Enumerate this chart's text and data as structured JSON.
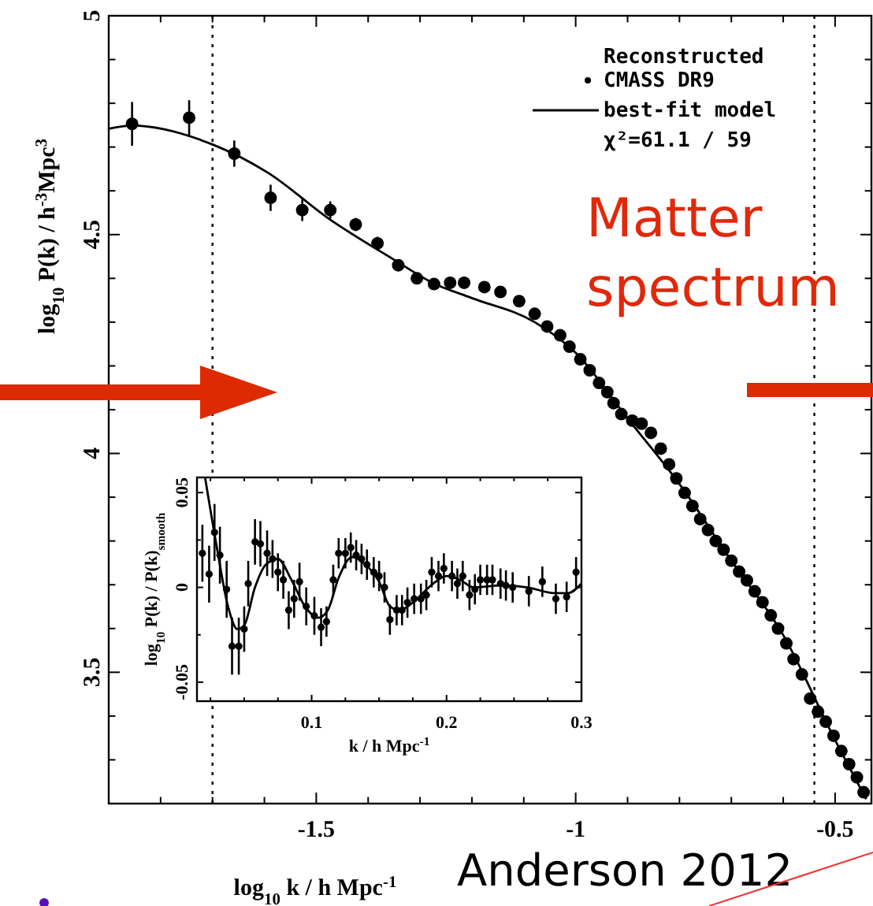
{
  "chart_data": [
    {
      "type": "scatter",
      "xlabel": "log$_{10}$ k / h Mpc$^{-1}$",
      "ylabel": "log$_{10}$ P(k) / h$^{-3}$Mpc$^{3}$",
      "legend_title": "Reconstructed",
      "legend": "top right",
      "xlim": [
        -1.9,
        -0.43
      ],
      "ylim": [
        3.2,
        5
      ],
      "xticks": [
        {
          "value": -1.8,
          "label": null
        },
        {
          "value": -1.7,
          "label": null
        },
        {
          "value": -1.6,
          "label": null
        },
        -1.5,
        {
          "value": -1.4,
          "label": null
        },
        {
          "value": -1.3,
          "label": null
        },
        {
          "value": -1.2,
          "label": null
        },
        {
          "value": -1.1,
          "label": null
        },
        -1,
        {
          "value": -0.9,
          "label": null
        },
        {
          "value": -0.8,
          "label": null
        },
        {
          "value": -0.7,
          "label": null
        },
        {
          "value": -0.6,
          "label": null
        },
        -0.5
      ],
      "yticks": [
        {
          "value": 3.3,
          "label": null
        },
        {
          "value": 3.4,
          "label": null
        },
        3.5,
        {
          "value": 3.6,
          "label": null
        },
        {
          "value": 3.7,
          "label": null
        },
        {
          "value": 3.8,
          "label": null
        },
        {
          "value": 3.9,
          "label": null
        },
        4,
        {
          "value": 4.1,
          "label": null
        },
        {
          "value": 4.2,
          "label": null
        },
        {
          "value": 4.3,
          "label": null
        },
        {
          "value": 4.4,
          "label": null
        },
        4.5,
        {
          "value": 4.6,
          "label": null
        },
        {
          "value": 4.7,
          "label": null
        },
        {
          "value": 4.8,
          "label": null
        },
        {
          "value": 4.9,
          "label": null
        },
        5
      ],
      "ref_lines": [
        {
          "axis": "x",
          "value": -1.7,
          "line_style": "dotted"
        },
        {
          "axis": "x",
          "value": -0.54,
          "line_style": "dotted"
        }
      ],
      "annotations": [
        "χ²=61.1 / 59",
        "Matter spectrum",
        "Anderson 2012"
      ],
      "series": [
        {
          "name": "CMASS DR9",
          "type": "scatter",
          "marker": "circle",
          "color": "#000000",
          "x": [
            -1.855,
            -1.745,
            -1.658,
            -1.588,
            -1.527,
            -1.473,
            -1.424,
            -1.382,
            -1.342,
            -1.306,
            -1.273,
            -1.242,
            -1.215,
            -1.176,
            -1.145,
            -1.109,
            -1.079,
            -1.055,
            -1.03,
            -1.012,
            -0.991,
            -0.973,
            -0.955,
            -0.939,
            -0.927,
            -0.912,
            -0.891,
            -0.873,
            -0.855,
            -0.836,
            -0.82,
            -0.806,
            -0.79,
            -0.775,
            -0.76,
            -0.745,
            -0.73,
            -0.715,
            -0.7,
            -0.685,
            -0.67,
            -0.655,
            -0.64,
            -0.624,
            -0.61,
            -0.594,
            -0.58,
            -0.564,
            -0.548,
            -0.533,
            -0.518,
            -0.503,
            -0.488,
            -0.473,
            -0.458,
            -0.445
          ],
          "values": [
            4.753,
            4.767,
            4.685,
            4.584,
            4.556,
            4.556,
            4.523,
            4.48,
            4.43,
            4.4,
            4.387,
            4.39,
            4.39,
            4.38,
            4.369,
            4.348,
            4.319,
            4.29,
            4.27,
            4.244,
            4.215,
            4.19,
            4.161,
            4.14,
            4.115,
            4.09,
            4.075,
            4.068,
            4.047,
            4.011,
            3.975,
            3.943,
            3.91,
            3.88,
            3.85,
            3.825,
            3.8,
            3.78,
            3.755,
            3.73,
            3.71,
            3.685,
            3.66,
            3.63,
            3.6,
            3.566,
            3.53,
            3.495,
            3.44,
            3.41,
            3.387,
            3.355,
            3.32,
            3.29,
            3.26,
            3.226
          ],
          "errors": [
            0.05,
            0.04,
            0.03,
            0.03,
            0.025,
            0.02,
            0.015,
            0.015,
            0.012,
            0.01,
            null,
            null,
            null,
            null,
            null,
            null,
            null,
            null,
            null,
            null,
            null,
            null,
            null,
            null,
            null,
            null,
            null,
            null,
            null,
            null,
            null,
            null,
            null,
            null,
            null,
            null,
            null,
            null,
            null,
            null,
            null,
            null,
            null,
            null,
            null,
            null,
            null,
            null,
            null,
            null,
            null,
            null,
            null,
            null,
            null,
            null
          ]
        },
        {
          "name": "best-fit model",
          "type": "line",
          "color": "#000000",
          "x": [
            -1.9,
            -1.855,
            -1.7,
            -1.594,
            -1.473,
            -1.352,
            -1.276,
            -1.2,
            -1.079,
            -1.0,
            -0.9,
            -0.8,
            -0.7,
            -0.6,
            -0.5,
            -0.44
          ],
          "values": [
            4.742,
            4.749,
            4.706,
            4.642,
            4.534,
            4.444,
            4.39,
            4.355,
            4.3,
            4.23,
            4.08,
            3.93,
            3.755,
            3.585,
            3.345,
            3.21
          ]
        }
      ]
    },
    {
      "type": "scatter",
      "xlabel": "k / h Mpc$^{-1}$",
      "ylabel": "log$_{10}$ P(k) / P(k)$_{smooth}$",
      "xlim": [
        0.015,
        0.3
      ],
      "ylim": [
        -0.06,
        0.058
      ],
      "xticks": [
        {
          "value": 0.025,
          "label": null
        },
        {
          "value": 0.05,
          "label": null
        },
        {
          "value": 0.075,
          "label": null
        },
        0.1,
        {
          "value": 0.125,
          "label": null
        },
        {
          "value": 0.15,
          "label": null
        },
        {
          "value": 0.175,
          "label": null
        },
        0.2,
        {
          "value": 0.225,
          "label": null
        },
        {
          "value": 0.25,
          "label": null
        },
        {
          "value": 0.275,
          "label": null
        },
        0.3
      ],
      "yticks": [
        -0.05,
        {
          "value": -0.025,
          "label": null
        },
        0,
        {
          "value": 0.025,
          "label": null
        },
        0.05
      ],
      "series": [
        {
          "type": "scatter",
          "marker": "circle",
          "color": "#000000",
          "x": [
            0.019,
            0.024,
            0.028,
            0.032,
            0.037,
            0.041,
            0.046,
            0.05,
            0.053,
            0.058,
            0.062,
            0.067,
            0.071,
            0.075,
            0.079,
            0.083,
            0.087,
            0.091,
            0.096,
            0.102,
            0.107,
            0.111,
            0.116,
            0.12,
            0.125,
            0.129,
            0.133,
            0.137,
            0.141,
            0.146,
            0.15,
            0.154,
            0.158,
            0.163,
            0.167,
            0.171,
            0.176,
            0.181,
            0.185,
            0.189,
            0.194,
            0.198,
            0.204,
            0.208,
            0.212,
            0.217,
            0.221,
            0.225,
            0.23,
            0.234,
            0.24,
            0.244,
            0.249,
            0.261,
            0.271,
            0.281,
            0.289,
            0.296
          ],
          "values": [
            0.018,
            0.007,
            0.029,
            0.017,
            -0.001,
            -0.031,
            -0.031,
            -0.022,
            0.002,
            0.024,
            0.023,
            0.018,
            0.015,
            0.008,
            0.004,
            -0.012,
            -0.006,
            0.003,
            -0.01,
            -0.015,
            -0.021,
            -0.018,
            0.004,
            0.018,
            0.018,
            0.021,
            0.017,
            0.015,
            0.012,
            0.008,
            0.006,
            0,
            -0.017,
            -0.012,
            -0.012,
            -0.008,
            -0.006,
            -0.006,
            -0.004,
            0.008,
            0.006,
            0.01,
            0.006,
            0.002,
            0.006,
            -0.004,
            -0.001,
            0.004,
            0.004,
            0.004,
            0.002,
            0.001,
            0,
            -0.002,
            0.003,
            -0.006,
            -0.005,
            0.008
          ],
          "errors": [
            0.015,
            0.015,
            0.015,
            0.015,
            0.015,
            0.015,
            0.015,
            0.012,
            0.012,
            0.012,
            0.012,
            0.012,
            0.01,
            0.01,
            0.01,
            0.01,
            0.01,
            0.01,
            0.01,
            0.01,
            0.01,
            0.008,
            0.008,
            0.008,
            0.008,
            0.008,
            0.008,
            0.008,
            0.008,
            0.008,
            0.008,
            0.008,
            0.008,
            0.008,
            0.008,
            0.008,
            0.008,
            0.008,
            0.008,
            0.008,
            0.008,
            0.008,
            0.008,
            0.008,
            0.008,
            0.008,
            0.008,
            0.008,
            0.008,
            0.008,
            0.008,
            0.008,
            0.008,
            0.008,
            0.008,
            0.008,
            0.008,
            0.008
          ]
        },
        {
          "type": "line",
          "color": "#000000",
          "x": [
            0.021,
            0.03,
            0.038,
            0.045,
            0.05,
            0.058,
            0.066,
            0.075,
            0.085,
            0.095,
            0.105,
            0.112,
            0.12,
            0.13,
            0.14,
            0.15,
            0.158,
            0.165,
            0.175,
            0.19,
            0.2,
            0.21,
            0.22,
            0.24,
            0.26,
            0.28,
            0.29,
            0.3
          ],
          "values": [
            0.058,
            0.02,
            -0.01,
            -0.022,
            -0.02,
            0,
            0.012,
            0.015,
            0.004,
            -0.01,
            -0.016,
            -0.012,
            0.005,
            0.016,
            0.012,
            0.003,
            -0.01,
            -0.012,
            -0.008,
            0.002,
            0.006,
            0.004,
            0,
            0.001,
            0,
            -0.003,
            -0.003,
            0.002
          ]
        }
      ]
    }
  ]
}
